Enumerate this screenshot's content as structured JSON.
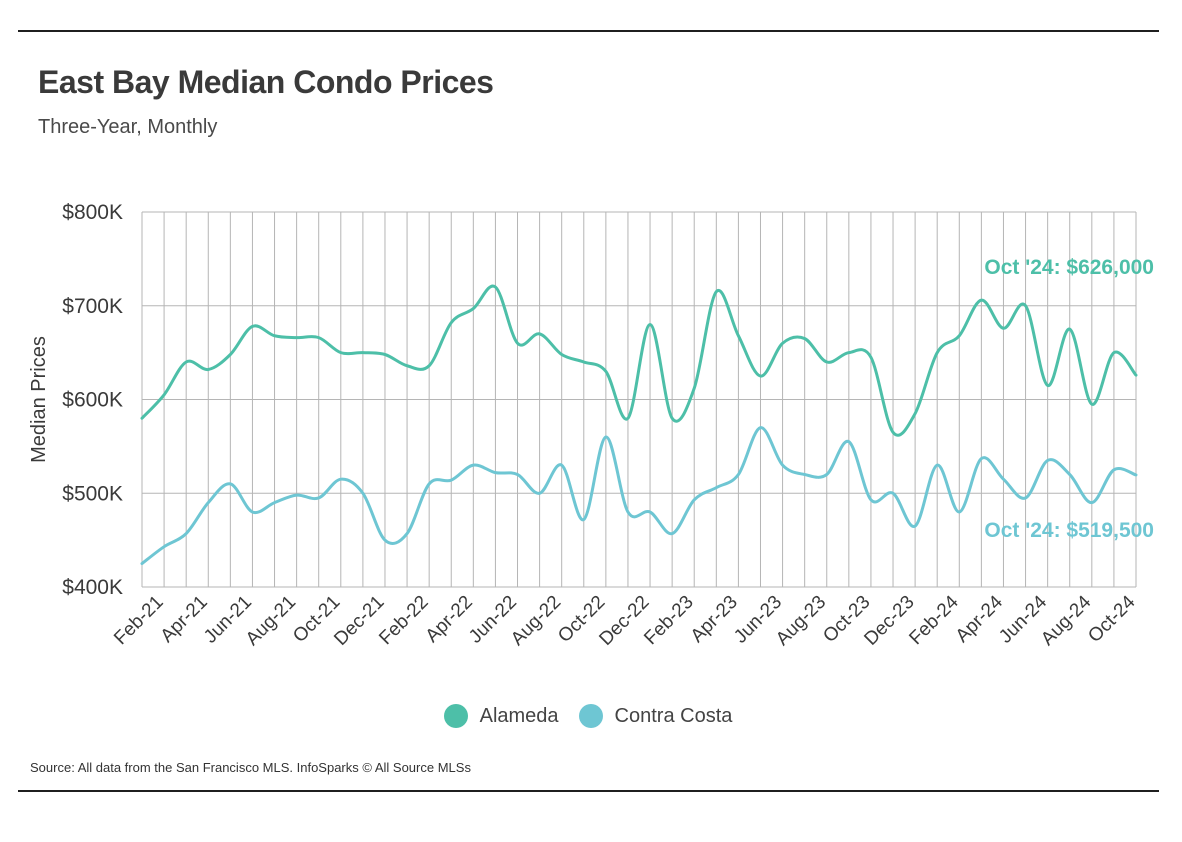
{
  "title": "East Bay Median Condo Prices",
  "subtitle": "Three-Year, Monthly",
  "source": "Source:  All data from the San Francisco MLS. InfoSparks © All Source MLSs",
  "colors": {
    "Alameda": "#4dbfa8",
    "Contra Costa": "#6ec6d3",
    "grid": "#b5b5b5",
    "text": "#3a3a3a"
  },
  "chart_data": {
    "type": "line",
    "title": "East Bay Median Condo Prices",
    "subtitle": "Three-Year, Monthly",
    "xlabel": "",
    "ylabel": "Median Prices",
    "ylim": [
      400000,
      800000
    ],
    "yticks": [
      400000,
      500000,
      600000,
      700000,
      800000
    ],
    "ytick_labels": [
      "$400K",
      "$500K",
      "$600K",
      "$700K",
      "$800K"
    ],
    "grid": true,
    "legend_position": "bottom",
    "x": [
      "Jan-21",
      "Feb-21",
      "Mar-21",
      "Apr-21",
      "May-21",
      "Jun-21",
      "Jul-21",
      "Aug-21",
      "Sep-21",
      "Oct-21",
      "Nov-21",
      "Dec-21",
      "Jan-22",
      "Feb-22",
      "Mar-22",
      "Apr-22",
      "May-22",
      "Jun-22",
      "Jul-22",
      "Aug-22",
      "Sep-22",
      "Oct-22",
      "Nov-22",
      "Dec-22",
      "Jan-23",
      "Feb-23",
      "Mar-23",
      "Apr-23",
      "May-23",
      "Jun-23",
      "Jul-23",
      "Aug-23",
      "Sep-23",
      "Oct-23",
      "Nov-23",
      "Dec-23",
      "Jan-24",
      "Feb-24",
      "Mar-24",
      "Apr-24",
      "May-24",
      "Jun-24",
      "Jul-24",
      "Aug-24",
      "Sep-24",
      "Oct-24"
    ],
    "x_tick_labels": [
      "Feb-21",
      "Apr-21",
      "Jun-21",
      "Aug-21",
      "Oct-21",
      "Dec-21",
      "Feb-22",
      "Apr-22",
      "Jun-22",
      "Aug-22",
      "Oct-22",
      "Dec-22",
      "Feb-23",
      "Apr-23",
      "Jun-23",
      "Aug-23",
      "Oct-23",
      "Dec-23",
      "Feb-24",
      "Apr-24",
      "Jun-24",
      "Aug-24",
      "Oct-24"
    ],
    "series": [
      {
        "name": "Alameda",
        "values": [
          580000,
          605000,
          640000,
          632000,
          648000,
          678000,
          668000,
          666000,
          666000,
          650000,
          650000,
          648000,
          636000,
          636000,
          682000,
          697000,
          720000,
          660000,
          670000,
          648000,
          640000,
          630000,
          580000,
          680000,
          580000,
          612000,
          715000,
          668000,
          625000,
          660000,
          665000,
          640000,
          650000,
          645000,
          565000,
          585000,
          650000,
          668000,
          706000,
          676000,
          700000,
          615000,
          675000,
          595000,
          650000,
          626000
        ]
      },
      {
        "name": "Contra Costa",
        "values": [
          425000,
          443000,
          457000,
          490000,
          510000,
          480000,
          490000,
          498000,
          495000,
          515000,
          500000,
          450000,
          457000,
          510000,
          514000,
          530000,
          522000,
          520000,
          500000,
          530000,
          472000,
          560000,
          480000,
          480000,
          457000,
          493000,
          506000,
          520000,
          570000,
          530000,
          520000,
          520000,
          555000,
          493000,
          500000,
          465000,
          530000,
          480000,
          537000,
          515000,
          495000,
          535000,
          520000,
          490000,
          525000,
          519500
        ]
      }
    ],
    "annotations": [
      "Oct '24: $626,000",
      "Oct '24: $519,500"
    ]
  },
  "legend": [
    {
      "label": "Alameda",
      "color": "#4dbfa8"
    },
    {
      "label": "Contra Costa",
      "color": "#6ec6d3"
    }
  ]
}
